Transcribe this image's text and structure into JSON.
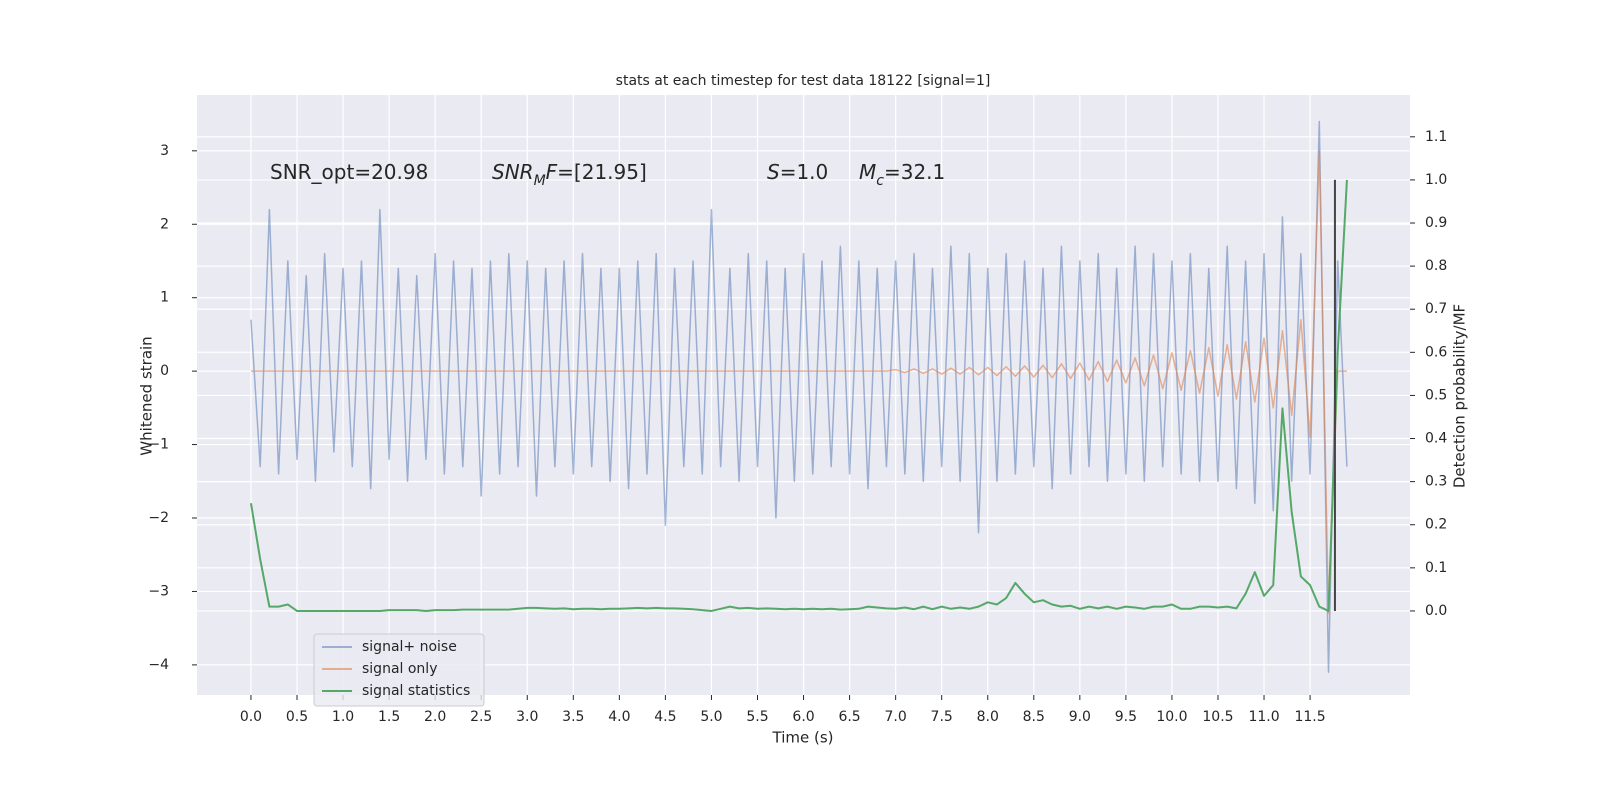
{
  "chart_data": {
    "type": "line",
    "title": "stats at each timestep for test data 18122 [signal=1]",
    "xlabel": "Time (s)",
    "ylabel": "Whitened strain",
    "y2label": "Detection probability/MF",
    "grid": true,
    "legend": "lower left",
    "annotations": [
      {
        "parts": [
          {
            "text": "SNR_opt=20.98"
          }
        ]
      },
      {
        "parts": [
          {
            "text": "SNR",
            "italic": true
          },
          {
            "text": "M",
            "italic": true,
            "sub": true
          },
          {
            "text": "F",
            "italic": true
          },
          {
            "text": "=[21.95]"
          }
        ]
      },
      {
        "parts": [
          {
            "text": "S",
            "italic": true
          },
          {
            "text": "=1.0"
          }
        ]
      },
      {
        "parts": [
          {
            "text": "M",
            "italic": true
          },
          {
            "text": "c",
            "italic": true,
            "sub": true
          },
          {
            "text": "=32.1"
          }
        ]
      }
    ],
    "xlim": [
      -0.586,
      12.585
    ],
    "ylim": [
      -4.41,
      3.76
    ],
    "y2lim": [
      -0.195,
      1.197
    ],
    "xticks": [
      {
        "value": 0,
        "label": "0.0"
      },
      {
        "value": 0.5,
        "label": "0.5"
      },
      {
        "value": 1,
        "label": "1.0"
      },
      {
        "value": 1.5,
        "label": "1.5"
      },
      {
        "value": 2,
        "label": "2.0"
      },
      {
        "value": 2.5,
        "label": "2.5"
      },
      {
        "value": 3,
        "label": "3.0"
      },
      {
        "value": 3.5,
        "label": "3.5"
      },
      {
        "value": 4,
        "label": "4.0"
      },
      {
        "value": 4.5,
        "label": "4.5"
      },
      {
        "value": 5,
        "label": "5.0"
      },
      {
        "value": 5.5,
        "label": "5.5"
      },
      {
        "value": 6,
        "label": "6.0"
      },
      {
        "value": 6.5,
        "label": "6.5"
      },
      {
        "value": 7,
        "label": "7.0"
      },
      {
        "value": 7.5,
        "label": "7.5"
      },
      {
        "value": 8,
        "label": "8.0"
      },
      {
        "value": 8.5,
        "label": "8.5"
      },
      {
        "value": 9,
        "label": "9.0"
      },
      {
        "value": 9.5,
        "label": "9.5"
      },
      {
        "value": 10,
        "label": "10.0"
      },
      {
        "value": 10.5,
        "label": "10.5"
      },
      {
        "value": 11,
        "label": "11.0"
      },
      {
        "value": 11.5,
        "label": "11.5"
      }
    ],
    "yticks": [
      {
        "value": -4,
        "label": "−4"
      },
      {
        "value": -3,
        "label": "−3"
      },
      {
        "value": -2,
        "label": "−2"
      },
      {
        "value": -1,
        "label": "−1"
      },
      0,
      1,
      2,
      3
    ],
    "y2ticks": [
      {
        "value": 0,
        "label": "0.0"
      },
      {
        "value": 0.1,
        "label": "0.1"
      },
      {
        "value": 0.2,
        "label": "0.2"
      },
      {
        "value": 0.3,
        "label": "0.3"
      },
      {
        "value": 0.4,
        "label": "0.4"
      },
      {
        "value": 0.5,
        "label": "0.5"
      },
      {
        "value": 0.6,
        "label": "0.6"
      },
      {
        "value": 0.7,
        "label": "0.7"
      },
      {
        "value": 0.8,
        "label": "0.8"
      },
      {
        "value": 0.9,
        "label": "0.9"
      },
      {
        "value": 1,
        "label": "1.0"
      },
      {
        "value": 1.1,
        "label": "1.1"
      }
    ],
    "x": [
      0,
      0.1,
      0.2,
      0.3,
      0.4,
      0.5,
      0.6,
      0.7,
      0.8,
      0.9,
      1,
      1.1,
      1.2,
      1.3,
      1.4,
      1.5,
      1.6,
      1.7,
      1.8,
      1.9,
      2,
      2.1,
      2.2,
      2.3,
      2.4,
      2.5,
      2.6,
      2.7,
      2.8,
      2.9,
      3,
      3.1,
      3.2,
      3.3,
      3.4,
      3.5,
      3.6,
      3.7,
      3.8,
      3.9,
      4,
      4.1,
      4.2,
      4.3,
      4.4,
      4.5,
      4.6,
      4.7,
      4.8,
      4.9,
      5,
      5.1,
      5.2,
      5.3,
      5.4,
      5.5,
      5.6,
      5.7,
      5.8,
      5.9,
      6,
      6.1,
      6.2,
      6.3,
      6.4,
      6.5,
      6.6,
      6.7,
      6.8,
      6.9,
      7,
      7.1,
      7.2,
      7.3,
      7.4,
      7.5,
      7.6,
      7.7,
      7.8,
      7.9,
      8,
      8.1,
      8.2,
      8.3,
      8.4,
      8.5,
      8.6,
      8.7,
      8.8,
      8.9,
      9,
      9.1,
      9.2,
      9.3,
      9.4,
      9.5,
      9.6,
      9.7,
      9.8,
      9.9,
      10,
      10.1,
      10.2,
      10.3,
      10.4,
      10.5,
      10.6,
      10.7,
      10.8,
      10.9,
      11,
      11.1,
      11.2,
      11.3,
      11.4,
      11.5,
      11.6,
      11.7,
      11.8,
      11.9
    ],
    "series": [
      {
        "name": "signal+ noise",
        "color": "#4c72b0",
        "opacity": 0.5,
        "values": [
          0.7,
          -1.3,
          2.2,
          -1.4,
          1.5,
          -1.2,
          1.3,
          -1.5,
          1.6,
          -1.1,
          1.4,
          -1.3,
          1.5,
          -1.6,
          2.2,
          -1.2,
          1.4,
          -1.5,
          1.3,
          -1.2,
          1.6,
          -1.4,
          1.5,
          -1.3,
          1.4,
          -1.7,
          1.5,
          -1.4,
          1.6,
          -1.3,
          1.5,
          -1.7,
          1.4,
          -1.3,
          1.5,
          -1.4,
          1.6,
          -1.3,
          1.4,
          -1.5,
          1.4,
          -1.6,
          1.5,
          -1.4,
          1.6,
          -2.1,
          1.4,
          -1.3,
          1.5,
          -1.4,
          2.2,
          -1.3,
          1.4,
          -1.5,
          1.6,
          -1.3,
          1.5,
          -2.0,
          1.4,
          -1.5,
          1.6,
          -1.4,
          1.5,
          -1.3,
          1.7,
          -1.4,
          1.5,
          -1.6,
          1.4,
          -1.3,
          1.5,
          -1.4,
          1.6,
          -1.5,
          1.4,
          -1.3,
          1.7,
          -1.5,
          1.6,
          -2.2,
          1.4,
          -1.5,
          1.6,
          -1.4,
          1.5,
          -1.3,
          1.4,
          -1.6,
          1.7,
          -1.4,
          1.5,
          -1.3,
          1.6,
          -1.5,
          1.4,
          -1.4,
          1.7,
          -1.5,
          1.6,
          -1.3,
          1.5,
          -1.4,
          1.6,
          -1.5,
          1.4,
          -1.5,
          1.7,
          -1.6,
          1.5,
          -1.8,
          1.6,
          -1.9,
          2.1,
          -1.5,
          1.6,
          -1.4,
          3.4,
          -4.1,
          1.5,
          -1.3
        ]
      },
      {
        "name": "signal only",
        "color": "#dd8452",
        "opacity": 0.6,
        "values": [
          0,
          0,
          0,
          0,
          0,
          0,
          0,
          0,
          0,
          0,
          0,
          0,
          0,
          0,
          0,
          0,
          0,
          0,
          0,
          0,
          0,
          0,
          0,
          0,
          0,
          0,
          0,
          0,
          0,
          0,
          0,
          0,
          0,
          0,
          0,
          0,
          0,
          0,
          0,
          0,
          0,
          0,
          0,
          0,
          0,
          0,
          0,
          0,
          0,
          0,
          0,
          0,
          0,
          0,
          0,
          0,
          0,
          0,
          0,
          0,
          0,
          0,
          0,
          0,
          0,
          0,
          0,
          0,
          0,
          0,
          0.02,
          -0.02,
          0.03,
          -0.03,
          0.03,
          -0.04,
          0.04,
          -0.04,
          0.05,
          -0.05,
          0.05,
          -0.06,
          0.06,
          -0.07,
          0.07,
          -0.08,
          0.08,
          -0.09,
          0.1,
          -0.1,
          0.11,
          -0.12,
          0.13,
          -0.14,
          0.15,
          -0.16,
          0.18,
          -0.2,
          0.22,
          -0.24,
          0.25,
          -0.26,
          0.28,
          -0.3,
          0.32,
          -0.34,
          0.36,
          -0.38,
          0.4,
          -0.42,
          0.45,
          -0.5,
          0.55,
          -0.6,
          0.7,
          -0.9,
          3.0,
          -3.3,
          0,
          0
        ]
      },
      {
        "name": "signal statistics",
        "color": "#55a868",
        "opacity": 1,
        "axis": "y2",
        "values": [
          0.25,
          0.12,
          0.01,
          0.01,
          0.015,
          0.0,
          0.0,
          0.0,
          0.0,
          0.0,
          0.0,
          0.0,
          0.0,
          0.0,
          0.0,
          0.002,
          0.002,
          0.002,
          0.002,
          0.0,
          0.002,
          0.002,
          0.002,
          0.003,
          0.003,
          0.003,
          0.003,
          0.003,
          0.003,
          0.005,
          0.007,
          0.007,
          0.006,
          0.005,
          0.006,
          0.004,
          0.005,
          0.005,
          0.004,
          0.005,
          0.005,
          0.006,
          0.007,
          0.006,
          0.007,
          0.006,
          0.006,
          0.005,
          0.004,
          0.002,
          0.0,
          0.005,
          0.01,
          0.006,
          0.007,
          0.005,
          0.006,
          0.005,
          0.004,
          0.005,
          0.004,
          0.005,
          0.004,
          0.005,
          0.003,
          0.004,
          0.005,
          0.01,
          0.008,
          0.006,
          0.005,
          0.008,
          0.004,
          0.01,
          0.004,
          0.01,
          0.005,
          0.008,
          0.005,
          0.01,
          0.02,
          0.015,
          0.03,
          0.065,
          0.04,
          0.02,
          0.025,
          0.015,
          0.01,
          0.012,
          0.005,
          0.01,
          0.006,
          0.01,
          0.005,
          0.01,
          0.008,
          0.005,
          0.01,
          0.01,
          0.015,
          0.005,
          0.005,
          0.01,
          0.01,
          0.008,
          0.01,
          0.006,
          0.04,
          0.09,
          0.035,
          0.06,
          0.47,
          0.23,
          0.08,
          0.06,
          0.01,
          0.0,
          0.6,
          1.0
        ]
      }
    ],
    "vlines": [
      {
        "x": 11.77,
        "ymin": 0,
        "ymax": 1,
        "axis": "y2",
        "color": "#444444"
      }
    ]
  }
}
